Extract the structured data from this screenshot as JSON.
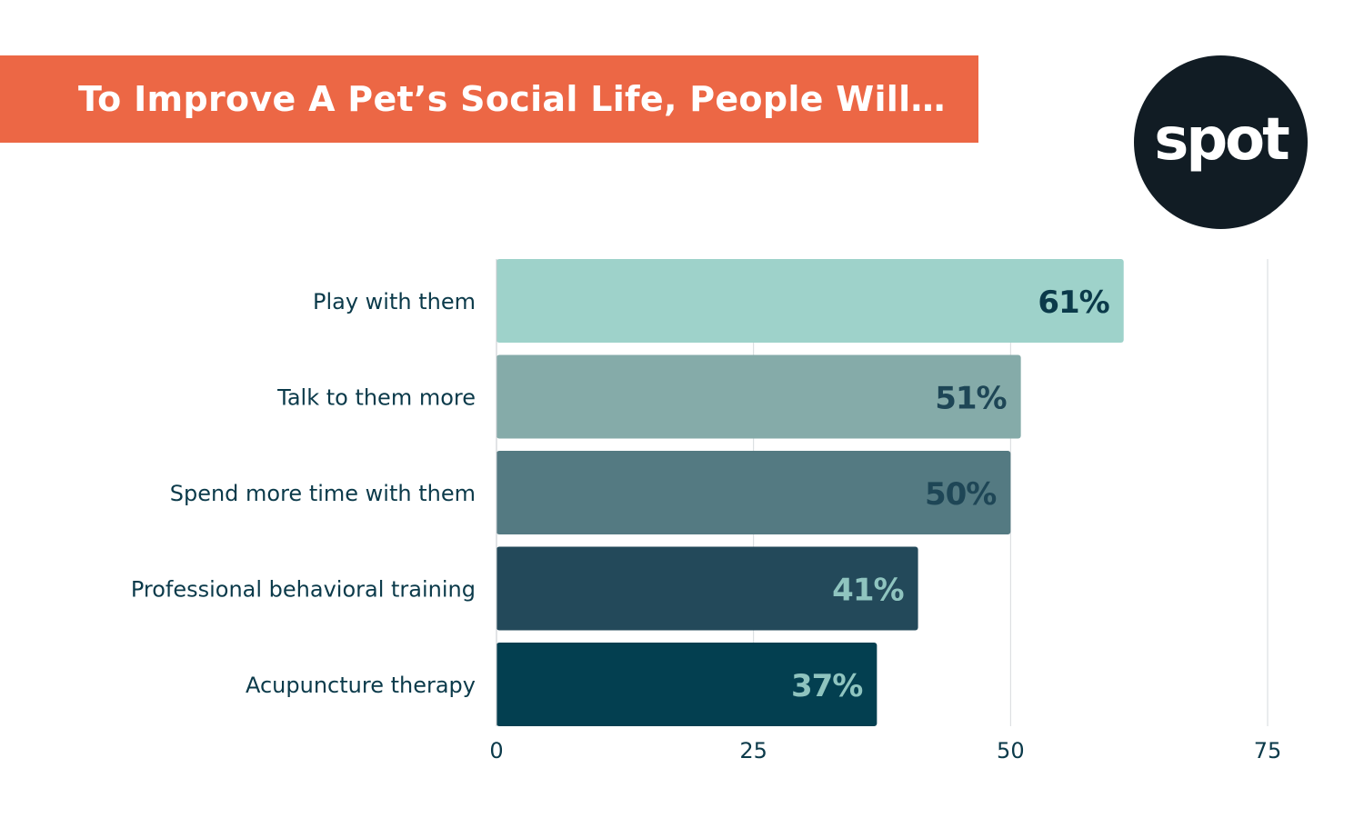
{
  "header": {
    "title": "To Improve A Pet’s Social Life, People Will…"
  },
  "logo": {
    "text": "spot"
  },
  "chart_data": {
    "type": "bar",
    "orientation": "horizontal",
    "title": "To Improve A Pet’s Social Life, People Will…",
    "categories": [
      "Play with them",
      "Talk to them more",
      "Spend more time with them",
      "Professional behavioral training",
      "Acupuncture therapy"
    ],
    "values": [
      61,
      51,
      50,
      41,
      37
    ],
    "data_labels": [
      "61%",
      "51%",
      "50%",
      "41%",
      "37%"
    ],
    "xlim": [
      0,
      75
    ],
    "xticks": [
      0,
      25,
      50,
      75
    ],
    "grid": true,
    "bar_colors": [
      "#9ed2ca",
      "#85aba9",
      "#547a82",
      "#23495a",
      "#033f50"
    ],
    "label_colors": [
      "#0b3a4a",
      "#1e4656",
      "#1e4656",
      "#8fc4bf",
      "#8fc4bf"
    ],
    "text_color": "#0b3a4a",
    "accent_color": "#ec6745"
  }
}
